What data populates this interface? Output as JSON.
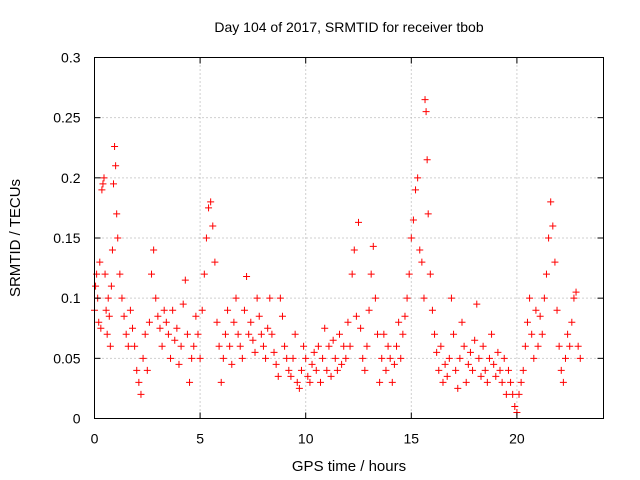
{
  "chart_data": {
    "type": "scatter",
    "title": "Day 104 of 2017, SRMTID for receiver tbob",
    "xlabel": "GPS time / hours",
    "ylabel": "SRMTID / TECUs",
    "xlim": [
      0,
      24.1
    ],
    "ylim": [
      0,
      0.3
    ],
    "xticks": [
      0,
      5,
      10,
      15,
      20
    ],
    "xtick_labels": [
      "0",
      "5",
      "10",
      "15",
      "20"
    ],
    "yticks": [
      0,
      0.05,
      0.1,
      0.15,
      0.2,
      0.25,
      0.3
    ],
    "ytick_labels": [
      "0",
      "0.05",
      "0.1",
      "0.15",
      "0.2",
      "0.25",
      "0.3"
    ],
    "grid": true,
    "marker": "+",
    "series": [
      {
        "name": "SRMTID",
        "color": "#ff0000",
        "points": [
          [
            0.0,
            0.09
          ],
          [
            0.05,
            0.11
          ],
          [
            0.1,
            0.12
          ],
          [
            0.15,
            0.1
          ],
          [
            0.2,
            0.08
          ],
          [
            0.25,
            0.13
          ],
          [
            0.3,
            0.075
          ],
          [
            0.35,
            0.19
          ],
          [
            0.4,
            0.195
          ],
          [
            0.45,
            0.2
          ],
          [
            0.5,
            0.12
          ],
          [
            0.55,
            0.09
          ],
          [
            0.6,
            0.07
          ],
          [
            0.65,
            0.1
          ],
          [
            0.7,
            0.085
          ],
          [
            0.75,
            0.06
          ],
          [
            0.8,
            0.11
          ],
          [
            0.85,
            0.14
          ],
          [
            0.9,
            0.195
          ],
          [
            0.95,
            0.226
          ],
          [
            1.0,
            0.21
          ],
          [
            1.05,
            0.17
          ],
          [
            1.1,
            0.15
          ],
          [
            1.2,
            0.12
          ],
          [
            1.3,
            0.1
          ],
          [
            1.4,
            0.085
          ],
          [
            1.5,
            0.07
          ],
          [
            1.6,
            0.06
          ],
          [
            1.7,
            0.09
          ],
          [
            1.8,
            0.075
          ],
          [
            1.9,
            0.06
          ],
          [
            2.0,
            0.04
          ],
          [
            2.1,
            0.03
          ],
          [
            2.2,
            0.02
          ],
          [
            2.3,
            0.05
          ],
          [
            2.4,
            0.07
          ],
          [
            2.5,
            0.04
          ],
          [
            2.6,
            0.08
          ],
          [
            2.7,
            0.12
          ],
          [
            2.8,
            0.14
          ],
          [
            2.9,
            0.1
          ],
          [
            3.0,
            0.085
          ],
          [
            3.1,
            0.075
          ],
          [
            3.2,
            0.06
          ],
          [
            3.3,
            0.09
          ],
          [
            3.4,
            0.08
          ],
          [
            3.5,
            0.07
          ],
          [
            3.6,
            0.05
          ],
          [
            3.7,
            0.09
          ],
          [
            3.8,
            0.065
          ],
          [
            3.9,
            0.075
          ],
          [
            4.0,
            0.045
          ],
          [
            4.1,
            0.06
          ],
          [
            4.2,
            0.095
          ],
          [
            4.3,
            0.115
          ],
          [
            4.4,
            0.07
          ],
          [
            4.5,
            0.03
          ],
          [
            4.6,
            0.05
          ],
          [
            4.7,
            0.06
          ],
          [
            4.8,
            0.085
          ],
          [
            4.9,
            0.07
          ],
          [
            5.0,
            0.05
          ],
          [
            5.1,
            0.09
          ],
          [
            5.2,
            0.12
          ],
          [
            5.3,
            0.15
          ],
          [
            5.4,
            0.175
          ],
          [
            5.5,
            0.18
          ],
          [
            5.6,
            0.16
          ],
          [
            5.7,
            0.13
          ],
          [
            5.8,
            0.08
          ],
          [
            5.9,
            0.06
          ],
          [
            6.0,
            0.03
          ],
          [
            6.1,
            0.05
          ],
          [
            6.2,
            0.07
          ],
          [
            6.3,
            0.09
          ],
          [
            6.4,
            0.06
          ],
          [
            6.5,
            0.045
          ],
          [
            6.6,
            0.08
          ],
          [
            6.7,
            0.1
          ],
          [
            6.8,
            0.07
          ],
          [
            6.9,
            0.06
          ],
          [
            7.0,
            0.05
          ],
          [
            7.1,
            0.09
          ],
          [
            7.2,
            0.118
          ],
          [
            7.3,
            0.07
          ],
          [
            7.4,
            0.08
          ],
          [
            7.5,
            0.065
          ],
          [
            7.6,
            0.055
          ],
          [
            7.7,
            0.1
          ],
          [
            7.8,
            0.085
          ],
          [
            7.9,
            0.07
          ],
          [
            8.0,
            0.06
          ],
          [
            8.1,
            0.05
          ],
          [
            8.2,
            0.075
          ],
          [
            8.3,
            0.1
          ],
          [
            8.4,
            0.07
          ],
          [
            8.5,
            0.055
          ],
          [
            8.6,
            0.045
          ],
          [
            8.7,
            0.035
          ],
          [
            8.8,
            0.1
          ],
          [
            8.9,
            0.085
          ],
          [
            9.0,
            0.06
          ],
          [
            9.1,
            0.05
          ],
          [
            9.2,
            0.04
          ],
          [
            9.3,
            0.035
          ],
          [
            9.4,
            0.05
          ],
          [
            9.5,
            0.07
          ],
          [
            9.6,
            0.03
          ],
          [
            9.7,
            0.025
          ],
          [
            9.8,
            0.04
          ],
          [
            9.9,
            0.06
          ],
          [
            10.0,
            0.05
          ],
          [
            10.1,
            0.035
          ],
          [
            10.2,
            0.03
          ],
          [
            10.3,
            0.045
          ],
          [
            10.4,
            0.055
          ],
          [
            10.5,
            0.04
          ],
          [
            10.6,
            0.06
          ],
          [
            10.7,
            0.03
          ],
          [
            10.8,
            0.05
          ],
          [
            10.9,
            0.075
          ],
          [
            11.0,
            0.04
          ],
          [
            11.1,
            0.06
          ],
          [
            11.2,
            0.035
          ],
          [
            11.3,
            0.065
          ],
          [
            11.4,
            0.05
          ],
          [
            11.5,
            0.04
          ],
          [
            11.6,
            0.07
          ],
          [
            11.7,
            0.045
          ],
          [
            11.8,
            0.06
          ],
          [
            11.9,
            0.05
          ],
          [
            12.0,
            0.08
          ],
          [
            12.1,
            0.06
          ],
          [
            12.2,
            0.12
          ],
          [
            12.3,
            0.14
          ],
          [
            12.4,
            0.085
          ],
          [
            12.5,
            0.163
          ],
          [
            12.6,
            0.075
          ],
          [
            12.7,
            0.05
          ],
          [
            12.8,
            0.04
          ],
          [
            12.9,
            0.06
          ],
          [
            13.0,
            0.09
          ],
          [
            13.1,
            0.12
          ],
          [
            13.2,
            0.143
          ],
          [
            13.3,
            0.1
          ],
          [
            13.4,
            0.07
          ],
          [
            13.5,
            0.03
          ],
          [
            13.6,
            0.05
          ],
          [
            13.7,
            0.07
          ],
          [
            13.8,
            0.04
          ],
          [
            13.9,
            0.06
          ],
          [
            14.0,
            0.05
          ],
          [
            14.1,
            0.03
          ],
          [
            14.2,
            0.045
          ],
          [
            14.3,
            0.06
          ],
          [
            14.4,
            0.08
          ],
          [
            14.5,
            0.05
          ],
          [
            14.6,
            0.07
          ],
          [
            14.7,
            0.085
          ],
          [
            14.8,
            0.1
          ],
          [
            14.9,
            0.12
          ],
          [
            15.0,
            0.15
          ],
          [
            15.1,
            0.165
          ],
          [
            15.2,
            0.19
          ],
          [
            15.3,
            0.2
          ],
          [
            15.4,
            0.14
          ],
          [
            15.5,
            0.13
          ],
          [
            15.6,
            0.1
          ],
          [
            15.65,
            0.265
          ],
          [
            15.7,
            0.255
          ],
          [
            15.75,
            0.215
          ],
          [
            15.8,
            0.17
          ],
          [
            15.9,
            0.12
          ],
          [
            16.0,
            0.09
          ],
          [
            16.1,
            0.07
          ],
          [
            16.2,
            0.055
          ],
          [
            16.3,
            0.04
          ],
          [
            16.4,
            0.06
          ],
          [
            16.5,
            0.03
          ],
          [
            16.6,
            0.045
          ],
          [
            16.7,
            0.035
          ],
          [
            16.8,
            0.05
          ],
          [
            16.9,
            0.1
          ],
          [
            17.0,
            0.07
          ],
          [
            17.1,
            0.04
          ],
          [
            17.2,
            0.025
          ],
          [
            17.3,
            0.05
          ],
          [
            17.4,
            0.08
          ],
          [
            17.5,
            0.06
          ],
          [
            17.6,
            0.03
          ],
          [
            17.7,
            0.045
          ],
          [
            17.8,
            0.055
          ],
          [
            17.9,
            0.04
          ],
          [
            18.0,
            0.065
          ],
          [
            18.1,
            0.095
          ],
          [
            18.2,
            0.05
          ],
          [
            18.3,
            0.035
          ],
          [
            18.4,
            0.06
          ],
          [
            18.5,
            0.04
          ],
          [
            18.6,
            0.03
          ],
          [
            18.7,
            0.05
          ],
          [
            18.8,
            0.07
          ],
          [
            18.9,
            0.045
          ],
          [
            19.0,
            0.035
          ],
          [
            19.1,
            0.055
          ],
          [
            19.2,
            0.04
          ],
          [
            19.3,
            0.03
          ],
          [
            19.4,
            0.05
          ],
          [
            19.5,
            0.02
          ],
          [
            19.6,
            0.04
          ],
          [
            19.7,
            0.03
          ],
          [
            19.8,
            0.02
          ],
          [
            19.9,
            0.01
          ],
          [
            20.0,
            0.005
          ],
          [
            20.1,
            0.02
          ],
          [
            20.2,
            0.03
          ],
          [
            20.3,
            0.04
          ],
          [
            20.4,
            0.06
          ],
          [
            20.5,
            0.08
          ],
          [
            20.6,
            0.1
          ],
          [
            20.7,
            0.07
          ],
          [
            20.8,
            0.05
          ],
          [
            20.9,
            0.09
          ],
          [
            21.0,
            0.06
          ],
          [
            21.1,
            0.085
          ],
          [
            21.2,
            0.07
          ],
          [
            21.3,
            0.1
          ],
          [
            21.4,
            0.12
          ],
          [
            21.5,
            0.15
          ],
          [
            21.6,
            0.18
          ],
          [
            21.7,
            0.16
          ],
          [
            21.8,
            0.13
          ],
          [
            21.9,
            0.09
          ],
          [
            22.0,
            0.06
          ],
          [
            22.1,
            0.04
          ],
          [
            22.2,
            0.03
          ],
          [
            22.3,
            0.05
          ],
          [
            22.4,
            0.07
          ],
          [
            22.5,
            0.06
          ],
          [
            22.6,
            0.08
          ],
          [
            22.7,
            0.1
          ],
          [
            22.8,
            0.105
          ],
          [
            22.9,
            0.06
          ],
          [
            23.0,
            0.05
          ]
        ]
      }
    ]
  }
}
